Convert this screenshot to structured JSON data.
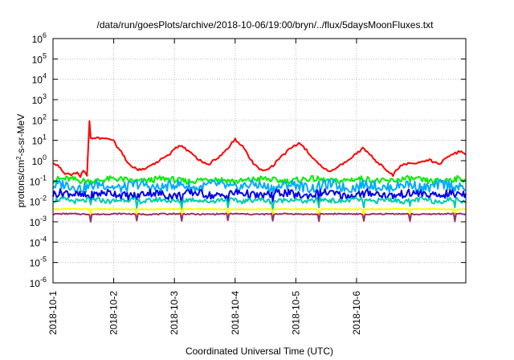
{
  "chart_data": {
    "type": "line",
    "title": "/data/run/goesPlots/archive/2018-10-06/19:00/bryn/../flux/5daysMoonFluxes.txt",
    "xlabel": "Coordinated Universal Time (UTC)",
    "ylabel": {
      "prefix": "protons/cm",
      "sup": "2",
      "suffix": "-s-sr-MeV"
    },
    "xlim": [
      0,
      6.8
    ],
    "ylim": [
      -6,
      6
    ],
    "yscale": "log",
    "grid": true,
    "x_ticks": [
      {
        "x": 0,
        "label": "2018-10-1"
      },
      {
        "x": 1,
        "label": "2018-10-2"
      },
      {
        "x": 2,
        "label": "2018-10-3"
      },
      {
        "x": 3,
        "label": "2018-10-4"
      },
      {
        "x": 4,
        "label": "2018-10-5"
      },
      {
        "x": 5,
        "label": "2018-10-6"
      }
    ],
    "y_ticks": [
      {
        "exp": -6,
        "base": "10",
        "sup": "-6"
      },
      {
        "exp": -5,
        "base": "10",
        "sup": "-5"
      },
      {
        "exp": -4,
        "base": "10",
        "sup": "-4"
      },
      {
        "exp": -3,
        "base": "10",
        "sup": "-3"
      },
      {
        "exp": -2,
        "base": "10",
        "sup": "-2"
      },
      {
        "exp": -1,
        "base": "10",
        "sup": "-1"
      },
      {
        "exp": 0,
        "base": "10",
        "sup": "0"
      },
      {
        "exp": 1,
        "base": "10",
        "sup": "1"
      },
      {
        "exp": 2,
        "base": "10",
        "sup": "2"
      },
      {
        "exp": 3,
        "base": "10",
        "sup": "3"
      },
      {
        "exp": 4,
        "base": "10",
        "sup": "4"
      },
      {
        "exp": 5,
        "base": "10",
        "sup": "5"
      },
      {
        "exp": 6,
        "base": "10",
        "sup": "6"
      }
    ],
    "series": [
      {
        "color": "#ff0000",
        "points": [
          [
            0,
            -0.1
          ],
          [
            0.1,
            -0.3
          ],
          [
            0.2,
            -0.6
          ],
          [
            0.3,
            -0.7
          ],
          [
            0.4,
            -0.55
          ],
          [
            0.45,
            -0.75
          ],
          [
            0.5,
            -0.45
          ],
          [
            0.56,
            -0.7
          ],
          [
            0.6,
            1.95
          ],
          [
            0.62,
            1.1
          ],
          [
            0.7,
            1.15
          ],
          [
            0.8,
            1.05
          ],
          [
            0.9,
            1.1
          ],
          [
            1.0,
            1.05
          ],
          [
            1.05,
            0.7
          ],
          [
            1.15,
            0.35
          ],
          [
            1.2,
            0.05
          ],
          [
            1.3,
            -0.25
          ],
          [
            1.4,
            -0.45
          ],
          [
            1.55,
            -0.35
          ],
          [
            1.7,
            -0.1
          ],
          [
            1.9,
            0.25
          ],
          [
            2.0,
            0.6
          ],
          [
            2.1,
            0.75
          ],
          [
            2.2,
            0.55
          ],
          [
            2.3,
            0.3
          ],
          [
            2.4,
            0.05
          ],
          [
            2.55,
            -0.2
          ],
          [
            2.7,
            0.1
          ],
          [
            2.9,
            0.7
          ],
          [
            3.0,
            1.05
          ],
          [
            3.1,
            0.8
          ],
          [
            3.2,
            0.35
          ],
          [
            3.3,
            -0.15
          ],
          [
            3.45,
            -0.5
          ],
          [
            3.6,
            -0.3
          ],
          [
            3.8,
            0.3
          ],
          [
            3.95,
            0.7
          ],
          [
            4.05,
            0.85
          ],
          [
            4.15,
            0.6
          ],
          [
            4.3,
            0.05
          ],
          [
            4.45,
            -0.35
          ],
          [
            4.55,
            -0.55
          ],
          [
            4.7,
            -0.3
          ],
          [
            4.85,
            0.0
          ],
          [
            5.0,
            0.35
          ],
          [
            5.1,
            0.6
          ],
          [
            5.2,
            0.35
          ],
          [
            5.35,
            -0.1
          ],
          [
            5.5,
            -0.45
          ],
          [
            5.6,
            -0.7
          ],
          [
            5.7,
            -0.3
          ],
          [
            5.85,
            -0.15
          ],
          [
            6.0,
            -0.1
          ],
          [
            6.2,
            0.05
          ],
          [
            6.35,
            -0.2
          ],
          [
            6.5,
            0.2
          ],
          [
            6.7,
            0.45
          ],
          [
            6.8,
            0.3
          ]
        ]
      },
      {
        "color": "#00ee00",
        "base": -0.95,
        "amplitude": 0.15,
        "period": 0.09
      },
      {
        "color": "#00aaff",
        "base": -1.25,
        "amplitude": 0.25,
        "period": 0.07
      },
      {
        "color": "#0000ee",
        "base": -1.65,
        "amplitude": 0.2,
        "period": 0.08
      },
      {
        "color": "#00ccaa",
        "base": -1.95,
        "amplitude": 0.12,
        "period": 0.06
      },
      {
        "color": "#ffff00",
        "base": -2.38,
        "amplitude": 0.02,
        "period": 0.2
      },
      {
        "color": "#993366",
        "base": -2.62,
        "amplitude": 0.03,
        "period": 0.1
      }
    ]
  }
}
